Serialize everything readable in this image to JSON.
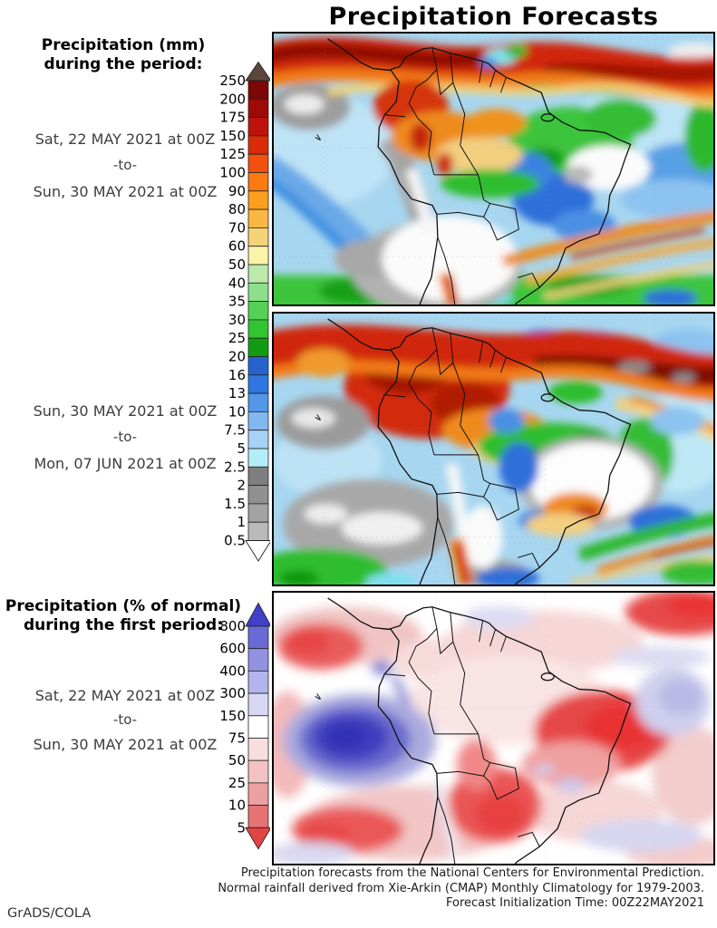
{
  "title": "Precipitation Forecasts",
  "left_column": {
    "mm_heading_line1": "Precipitation (mm)",
    "mm_heading_line2": "during the period:",
    "period1": {
      "start": "Sat, 22 MAY 2021 at 00Z",
      "separator": "-to-",
      "end": "Sun, 30 MAY 2021 at 00Z"
    },
    "period2": {
      "start": "Sun, 30 MAY 2021 at 00Z",
      "separator": "-to-",
      "end": "Mon, 07 JUN 2021 at 00Z"
    },
    "pct_heading_line1": "Precipitation (% of normal)",
    "pct_heading_line2": "during the first period:",
    "period3": {
      "start": "Sat, 22 MAY 2021 at 00Z",
      "separator": "-to-",
      "end": "Sun, 30 MAY 2021 at 00Z"
    }
  },
  "colorbar_mm": {
    "labels": [
      "250",
      "200",
      "175",
      "150",
      "125",
      "100",
      "90",
      "80",
      "70",
      "60",
      "50",
      "40",
      "35",
      "30",
      "25",
      "20",
      "16",
      "13",
      "10",
      "7.5",
      "5",
      "2.5",
      "2",
      "1.5",
      "1",
      "0.5"
    ],
    "cell_colors": [
      "#7d0606",
      "#9e0b06",
      "#bd130a",
      "#da2b0b",
      "#f1500e",
      "#fb7a12",
      "#fba01e",
      "#fbb743",
      "#f5d378",
      "#faf3a8",
      "#bce9ac",
      "#8ce08c",
      "#55d155",
      "#33c433",
      "#119c12",
      "#2663cf",
      "#2f77e0",
      "#5496e8",
      "#82b8f0",
      "#a8d2f5",
      "#b2eef8",
      "#7f7f7f",
      "#909090",
      "#a3a3a3",
      "#bababa"
    ],
    "top_arrow_color": "#5c463c",
    "bottom_arrow_color": "#ffffff"
  },
  "colorbar_pct": {
    "labels": [
      "800",
      "600",
      "400",
      "300",
      "150",
      "75",
      "50",
      "25",
      "10",
      "5"
    ],
    "cell_colors": [
      "#6a6ad6",
      "#9292e2",
      "#b4b4ec",
      "#d8d8f4",
      "#ffffff",
      "#f8dede",
      "#f3c2c2",
      "#eda0a0",
      "#e77272"
    ],
    "top_arrow_color": "#4040c8",
    "bottom_arrow_color": "#e24444"
  },
  "footer": {
    "line1": "Precipitation forecasts from the National Centers for Environmental Prediction.",
    "line2": "Normal rainfall derived from Xie-Arkin (CMAP) Monthly Climatology for 1979-2003.",
    "line3": "Forecast Initialization Time: 00Z22MAY2021"
  },
  "credit": "GrADS/COLA"
}
